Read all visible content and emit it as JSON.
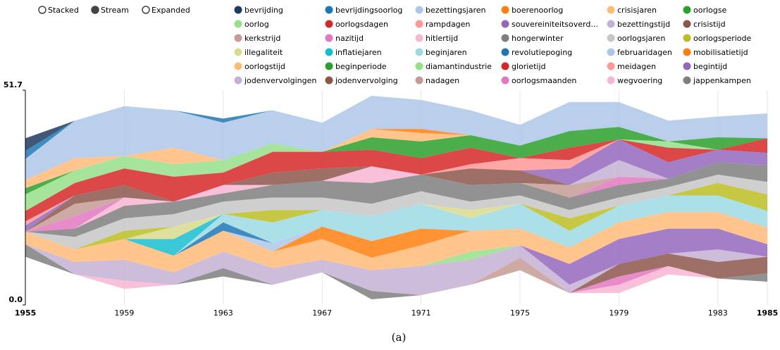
{
  "controls": [
    "Stacked",
    "Stream",
    "Expanded"
  ],
  "selected_control": 1,
  "chart_data": {
    "type": "stream",
    "caption": "(a)",
    "x": [
      1955,
      1957,
      1959,
      1961,
      1963,
      1965,
      1967,
      1969,
      1971,
      1973,
      1975,
      1977,
      1979,
      1981,
      1983,
      1985
    ],
    "xlim": [
      1955,
      1985
    ],
    "xticks": [
      1955,
      1959,
      1963,
      1967,
      1971,
      1975,
      1979,
      1983,
      1985
    ],
    "ylim": [
      0,
      51.7
    ],
    "yticks": [
      {
        "value": 0,
        "label": "0.0"
      },
      51.7
    ],
    "grid": true,
    "series": [
      {
        "name": "bevrijding",
        "color": "#1f3a5f",
        "values": [
          3,
          0,
          0,
          0,
          0,
          0,
          0,
          0,
          0,
          0,
          0,
          0,
          0,
          0,
          0,
          0
        ]
      },
      {
        "name": "bevrijdingsoorlog",
        "color": "#1f77b4",
        "values": [
          2,
          0,
          0,
          0,
          1,
          0,
          0,
          0,
          0,
          0,
          0,
          0,
          0,
          0,
          0,
          0
        ]
      },
      {
        "name": "bezettingsjaren",
        "color": "#aec7e8",
        "values": [
          5,
          9,
          12,
          9,
          9,
          8,
          7,
          8,
          7,
          6,
          5,
          7,
          6,
          5,
          5,
          6
        ]
      },
      {
        "name": "boerenoorlog",
        "color": "#ff7f0e",
        "values": [
          0,
          0,
          0,
          0,
          0,
          0,
          0,
          0,
          1,
          0,
          0,
          0,
          0,
          0,
          0,
          0
        ]
      },
      {
        "name": "crisisjaren",
        "color": "#ffbb78",
        "values": [
          2,
          3,
          0,
          4,
          0,
          0,
          0,
          2,
          2,
          0,
          0,
          0,
          0,
          0,
          0,
          0
        ]
      },
      {
        "name": "oorlogse",
        "color": "#2ca02c",
        "values": [
          1.5,
          0,
          0,
          0,
          0,
          0,
          0,
          3,
          4,
          3,
          3,
          4,
          3,
          0,
          3,
          0
        ]
      },
      {
        "name": "oorlog",
        "color": "#98df8a",
        "values": [
          4,
          3,
          3,
          3,
          3,
          2,
          0,
          0,
          0,
          0,
          0,
          0,
          0,
          1.5,
          0,
          0
        ]
      },
      {
        "name": "oorlogsdagen",
        "color": "#d62728",
        "values": [
          2.5,
          3,
          4,
          6,
          3,
          5,
          4,
          4,
          4,
          4,
          0,
          3,
          0,
          3.5,
          0,
          3.5
        ]
      },
      {
        "name": "rampdagen",
        "color": "#ff9896",
        "values": [
          1,
          0,
          0,
          0,
          0,
          0,
          0,
          0,
          0,
          1,
          3,
          2,
          0,
          0,
          0,
          0
        ]
      },
      {
        "name": "souvereiniteitsoverd...",
        "color": "#9467bd",
        "values": [
          1.5,
          0,
          0,
          0,
          0,
          0,
          0,
          0,
          0,
          0,
          0,
          4,
          5,
          4,
          3,
          3
        ]
      },
      {
        "name": "bezettingstijd",
        "color": "#c5b0d5",
        "values": [
          0,
          0,
          0,
          0,
          0,
          0,
          0,
          0,
          0,
          0,
          0,
          0,
          4,
          0,
          0,
          0
        ]
      },
      {
        "name": "crisistijd",
        "color": "#8c564b",
        "values": [
          0,
          2,
          3,
          0,
          0,
          3,
          3,
          0,
          0,
          4,
          3,
          0,
          0,
          0,
          0,
          0
        ]
      },
      {
        "name": "kerkstrijd",
        "color": "#c49c94",
        "values": [
          0,
          3,
          0,
          0,
          0,
          0,
          0,
          0,
          0,
          0,
          0,
          3,
          0,
          0,
          0,
          0
        ]
      },
      {
        "name": "nazitijd",
        "color": "#e377c2",
        "values": [
          0,
          3,
          0,
          0,
          0,
          0,
          0,
          0,
          0,
          0,
          0,
          0,
          2,
          0,
          0,
          0
        ]
      },
      {
        "name": "hitlertijd",
        "color": "#f7b6d2",
        "values": [
          0,
          0,
          2,
          0,
          2,
          0,
          0,
          4,
          0,
          0,
          0,
          0,
          0,
          0,
          0,
          0
        ]
      },
      {
        "name": "hongerwinter",
        "color": "#7f7f7f",
        "values": [
          0,
          2,
          3,
          3,
          2,
          3,
          4,
          5,
          4,
          4,
          3,
          3,
          3,
          2,
          3,
          4
        ]
      },
      {
        "name": "oorlogsjaren",
        "color": "#c7c7c7",
        "values": [
          0,
          3,
          3,
          3,
          3,
          3,
          3,
          3,
          3,
          2,
          2,
          2,
          2,
          2,
          2,
          3
        ]
      },
      {
        "name": "oorlogsperiode",
        "color": "#bcbd22",
        "values": [
          0,
          0,
          2,
          0,
          0,
          3,
          0,
          0,
          0,
          0,
          0,
          3,
          0,
          0,
          3,
          4
        ]
      },
      {
        "name": "illegaliteit",
        "color": "#dbdb8d",
        "values": [
          0,
          0,
          0,
          3,
          0,
          0,
          0,
          0,
          0,
          2,
          0,
          0,
          0,
          0,
          0,
          0
        ]
      },
      {
        "name": "inflatiejaren",
        "color": "#17becf",
        "values": [
          0,
          0,
          0,
          4,
          0,
          0,
          0,
          0,
          0,
          0,
          0,
          0,
          0,
          0,
          0,
          0
        ]
      },
      {
        "name": "beginjaren",
        "color": "#9edae5",
        "values": [
          0,
          0,
          0,
          0,
          2,
          5,
          4,
          6,
          6,
          3,
          6,
          4,
          4,
          4,
          4,
          4
        ]
      },
      {
        "name": "revolutiepoging",
        "color": "#1f77b4",
        "values": [
          0,
          0,
          0,
          0,
          2,
          0,
          0,
          0,
          0,
          0,
          0,
          0,
          0,
          0,
          0,
          0
        ]
      },
      {
        "name": "februaridagen",
        "color": "#aec7e8",
        "values": [
          0,
          0,
          0,
          0,
          0,
          2,
          0,
          0,
          0,
          0,
          0,
          0,
          0,
          0,
          0,
          0
        ]
      },
      {
        "name": "mobilisatietijd",
        "color": "#ff7f0e",
        "values": [
          0,
          0,
          0,
          0,
          0,
          0,
          3,
          4,
          4,
          0,
          0,
          0,
          0,
          0,
          0,
          0
        ]
      },
      {
        "name": "oorlogstijd",
        "color": "#ffbb78",
        "values": [
          3,
          3,
          5,
          4,
          5,
          4,
          5,
          3,
          5,
          5,
          4,
          4,
          4,
          4,
          4,
          4
        ]
      },
      {
        "name": "beginperiode",
        "color": "#2ca02c",
        "values": [
          0,
          0,
          0,
          0,
          0,
          0,
          0,
          0,
          0,
          0,
          0,
          0,
          0,
          0,
          0,
          0
        ]
      },
      {
        "name": "diamantindustrie",
        "color": "#98df8a",
        "values": [
          0,
          0,
          0,
          0,
          0,
          0,
          0,
          0,
          0,
          2,
          0,
          0,
          0,
          0,
          0,
          0
        ]
      },
      {
        "name": "glorietijd",
        "color": "#d62728",
        "values": [
          0,
          0,
          0,
          0,
          0,
          0,
          0,
          0,
          0,
          0,
          0,
          0,
          0,
          0,
          0,
          0
        ]
      },
      {
        "name": "meidagen",
        "color": "#ff9896",
        "values": [
          0,
          0,
          0,
          0,
          0,
          0,
          0,
          0,
          0,
          0,
          0,
          0,
          0,
          0,
          0,
          0
        ]
      },
      {
        "name": "begintijd",
        "color": "#9467bd",
        "values": [
          0,
          0,
          0,
          0,
          0,
          0,
          0,
          0,
          0,
          0,
          0,
          5,
          6,
          6,
          5,
          3
        ]
      },
      {
        "name": "jodenvervolgingen",
        "color": "#c5b0d5",
        "values": [
          0,
          3,
          5,
          3,
          4,
          4,
          3,
          5,
          7,
          6,
          3,
          2,
          0,
          0,
          3,
          0
        ]
      },
      {
        "name": "jodenvervolging",
        "color": "#8c564b",
        "values": [
          0,
          0,
          0,
          0,
          0,
          0,
          0,
          0,
          0,
          0,
          0,
          0,
          3,
          3,
          4,
          4
        ]
      },
      {
        "name": "nadagen",
        "color": "#c49c94",
        "values": [
          0,
          0,
          0,
          0,
          0,
          0,
          0,
          0,
          0,
          0,
          3,
          0,
          0,
          0,
          0,
          0
        ]
      },
      {
        "name": "oorlogsmaanden",
        "color": "#e377c2",
        "values": [
          0,
          0,
          0,
          0,
          0,
          0,
          0,
          0,
          0,
          0,
          0,
          0,
          2,
          0,
          0,
          0
        ]
      },
      {
        "name": "wegvoering",
        "color": "#f7b6d2",
        "values": [
          0,
          0,
          2,
          0,
          0,
          0,
          0,
          0,
          0,
          0,
          0,
          0,
          2,
          2,
          0,
          0
        ]
      },
      {
        "name": "jappenkampen",
        "color": "#7f7f7f",
        "values": [
          3,
          0,
          0,
          0,
          2,
          0,
          0,
          2,
          0,
          0,
          0,
          0,
          0,
          0,
          0,
          2
        ]
      }
    ]
  }
}
